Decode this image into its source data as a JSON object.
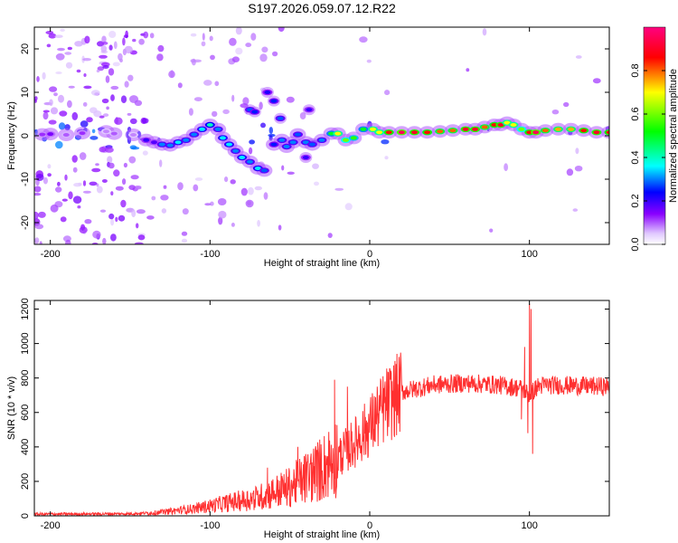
{
  "title": "S197.2026.059.07.12.R22",
  "chart_data": [
    {
      "type": "heatmap",
      "name": "spectrogram",
      "xlabel": "Height of straight line (km)",
      "ylabel": "Frequency (Hz)",
      "xlim": [
        -210,
        150
      ],
      "ylim": [
        -25,
        25
      ],
      "xticks": [
        -200,
        -100,
        0,
        100
      ],
      "yticks": [
        -20,
        -10,
        0,
        10,
        20
      ],
      "ridge": [
        {
          "x": -205,
          "y": 0.3,
          "v": 0.12
        },
        {
          "x": -200,
          "y": 0.4,
          "v": 0.15
        },
        {
          "x": -190,
          "y": 0.2,
          "v": 0.1
        },
        {
          "x": -180,
          "y": 0.6,
          "v": 0.12
        },
        {
          "x": -160,
          "y": 0.5,
          "v": 0.1
        },
        {
          "x": -165,
          "y": 1.0,
          "v": 0.08
        },
        {
          "x": -148,
          "y": 0.2,
          "v": 0.08
        },
        {
          "x": -140,
          "y": -1.0,
          "v": 0.2
        },
        {
          "x": -135,
          "y": -1.5,
          "v": 0.18
        },
        {
          "x": -130,
          "y": -2.0,
          "v": 0.3
        },
        {
          "x": -125,
          "y": -2.2,
          "v": 0.3
        },
        {
          "x": -120,
          "y": -1.5,
          "v": 0.35
        },
        {
          "x": -115,
          "y": -1.0,
          "v": 0.3
        },
        {
          "x": -110,
          "y": 0.3,
          "v": 0.3
        },
        {
          "x": -105,
          "y": 1.5,
          "v": 0.35
        },
        {
          "x": -100,
          "y": 2.5,
          "v": 0.4
        },
        {
          "x": -95,
          "y": 1.5,
          "v": 0.3
        },
        {
          "x": -92,
          "y": -0.5,
          "v": 0.35
        },
        {
          "x": -88,
          "y": -2.0,
          "v": 0.35
        },
        {
          "x": -84,
          "y": -3.5,
          "v": 0.3
        },
        {
          "x": -80,
          "y": -5.0,
          "v": 0.35
        },
        {
          "x": -75,
          "y": -6.0,
          "v": 0.3
        },
        {
          "x": -70,
          "y": -7.5,
          "v": 0.35
        },
        {
          "x": -66,
          "y": -8.0,
          "v": 0.28
        },
        {
          "x": -60,
          "y": -2.0,
          "v": 0.25
        },
        {
          "x": -55,
          "y": -1.0,
          "v": 0.3
        },
        {
          "x": -52,
          "y": -2.5,
          "v": 0.3
        },
        {
          "x": -48,
          "y": -1.5,
          "v": 0.3
        },
        {
          "x": -45,
          "y": 0.3,
          "v": 0.28
        },
        {
          "x": -40,
          "y": -1.5,
          "v": 0.3
        },
        {
          "x": -36,
          "y": -2.0,
          "v": 0.28
        },
        {
          "x": -30,
          "y": -1.0,
          "v": 0.3
        },
        {
          "x": -24,
          "y": 0.5,
          "v": 0.5
        },
        {
          "x": -20,
          "y": 0.5,
          "v": 0.7
        },
        {
          "x": -15,
          "y": -1.0,
          "v": 0.6
        },
        {
          "x": -10,
          "y": -0.5,
          "v": 0.55
        },
        {
          "x": -4,
          "y": 1.5,
          "v": 0.5
        },
        {
          "x": 2,
          "y": 1.5,
          "v": 0.7
        },
        {
          "x": 6,
          "y": 0.8,
          "v": 0.7
        },
        {
          "x": 12,
          "y": 0.8,
          "v": 0.85
        },
        {
          "x": 20,
          "y": 0.8,
          "v": 0.95
        },
        {
          "x": 28,
          "y": 0.8,
          "v": 0.9
        },
        {
          "x": 36,
          "y": 0.8,
          "v": 0.85
        },
        {
          "x": 44,
          "y": 1.0,
          "v": 0.8
        },
        {
          "x": 52,
          "y": 1.2,
          "v": 0.8
        },
        {
          "x": 60,
          "y": 1.5,
          "v": 0.9
        },
        {
          "x": 66,
          "y": 1.5,
          "v": 0.9
        },
        {
          "x": 72,
          "y": 2.0,
          "v": 0.8
        },
        {
          "x": 78,
          "y": 2.5,
          "v": 0.85
        },
        {
          "x": 82,
          "y": 2.5,
          "v": 0.9
        },
        {
          "x": 86,
          "y": 3.0,
          "v": 0.7
        },
        {
          "x": 90,
          "y": 2.5,
          "v": 0.7
        },
        {
          "x": 95,
          "y": 1.5,
          "v": 0.6
        },
        {
          "x": 100,
          "y": 0.8,
          "v": 0.85
        },
        {
          "x": 104,
          "y": 0.8,
          "v": 0.95
        },
        {
          "x": 110,
          "y": 1.2,
          "v": 0.8
        },
        {
          "x": 118,
          "y": 1.5,
          "v": 0.75
        },
        {
          "x": 126,
          "y": 1.5,
          "v": 0.75
        },
        {
          "x": 134,
          "y": 1.2,
          "v": 0.85
        },
        {
          "x": 142,
          "y": 0.8,
          "v": 0.9
        },
        {
          "x": 150,
          "y": 0.8,
          "v": 0.85
        }
      ],
      "branches": [
        {
          "x": -75,
          "y": 6.0,
          "v": 0.28
        },
        {
          "x": -72,
          "y": 5.5,
          "v": 0.25
        },
        {
          "x": -64,
          "y": 10.0,
          "v": 0.22
        },
        {
          "x": -60,
          "y": 8.0,
          "v": 0.25
        },
        {
          "x": -56,
          "y": 4.0,
          "v": 0.28
        },
        {
          "x": -38,
          "y": 6.0,
          "v": 0.2
        },
        {
          "x": -40,
          "y": -5.0,
          "v": 0.2
        }
      ]
    },
    {
      "type": "colorbar",
      "name": "colorbar",
      "label": "Normalized spectral amplitude",
      "range": [
        0,
        1
      ],
      "ticks": [
        "0.0",
        "0.2",
        "0.4",
        "0.6",
        "0.8"
      ],
      "tick_values": [
        0.0,
        0.2,
        0.4,
        0.6,
        0.8
      ],
      "colors": [
        "#ffffff",
        "#8a00ff",
        "#0000ff",
        "#00ffff",
        "#00ff00",
        "#ffff00",
        "#ff0000",
        "#ff0080"
      ]
    },
    {
      "type": "line",
      "name": "snr",
      "xlabel": "Height of straight line (km)",
      "ylabel": "SNR (10 * v/v)",
      "xlim": [
        -210,
        150
      ],
      "ylim": [
        0,
        1250
      ],
      "xticks": [
        -200,
        -100,
        0,
        100
      ],
      "yticks": [
        0,
        200,
        400,
        600,
        800,
        1000,
        1200
      ],
      "series": [
        {
          "name": "SNR",
          "color": "#ff3030",
          "envelope": {
            "x": [
              -210,
              -150,
              -130,
              -110,
              -90,
              -70,
              -50,
              -30,
              -20,
              -10,
              0,
              10,
              20,
              40,
              60,
              80,
              95,
              100,
              105,
              110,
              130,
              150
            ],
            "y": [
              10,
              12,
              20,
              40,
              70,
              100,
              160,
              260,
              340,
              420,
              520,
              640,
              720,
              760,
              770,
              760,
              740,
              700,
              750,
              760,
              755,
              750
            ]
          },
          "peaks": [
            {
              "x": -64,
              "y": 280
            },
            {
              "x": -45,
              "y": 400
            },
            {
              "x": -22,
              "y": 790
            },
            {
              "x": -14,
              "y": 750
            },
            {
              "x": 7,
              "y": 780
            },
            {
              "x": 100,
              "y": 1230
            },
            {
              "x": 101,
              "y": 1200
            },
            {
              "x": 102,
              "y": 360
            },
            {
              "x": 95,
              "y": 560
            },
            {
              "x": 99,
              "y": 480
            },
            {
              "x": 97,
              "y": 980
            }
          ]
        }
      ]
    }
  ]
}
